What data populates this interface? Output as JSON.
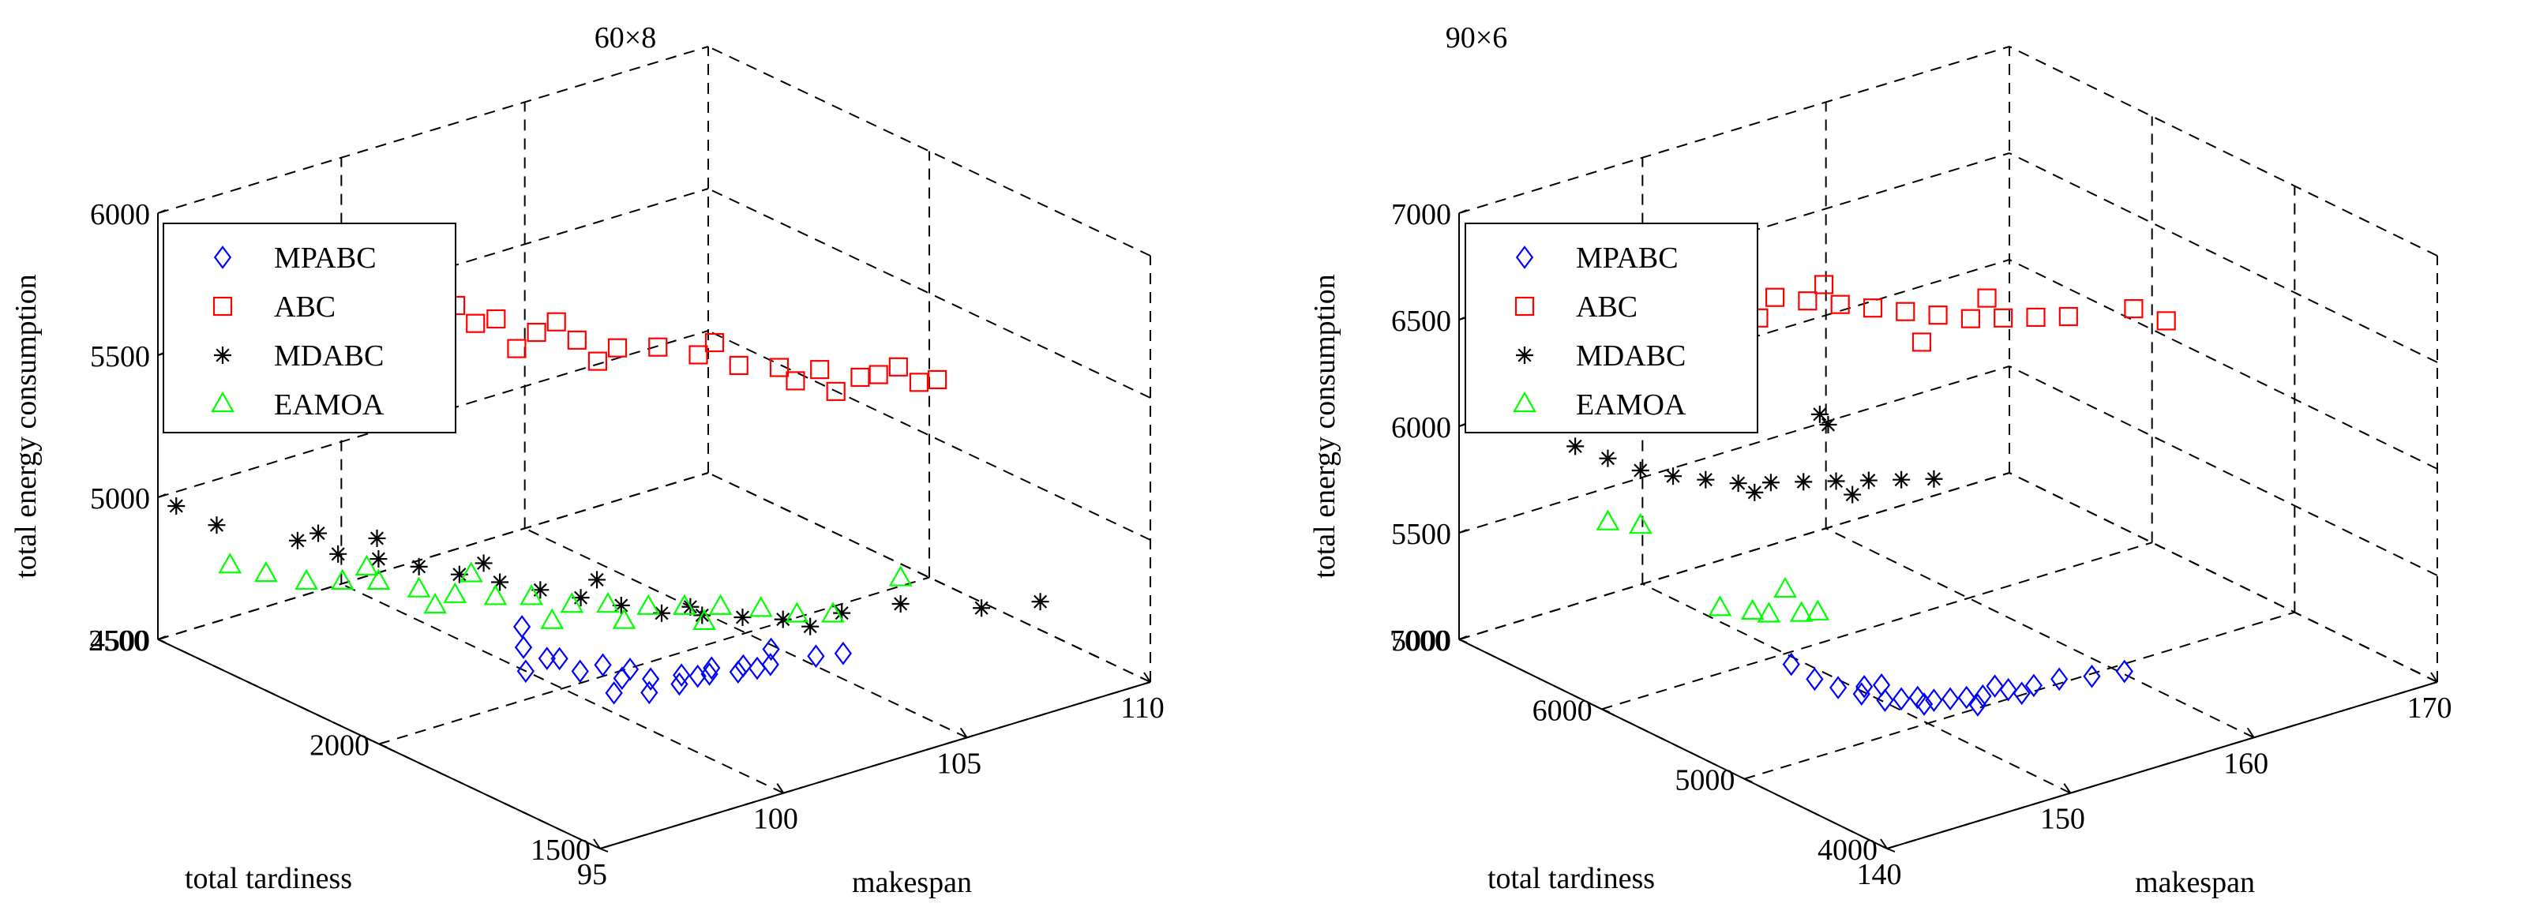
{
  "figure": {
    "caption": ""
  },
  "chart_data": [
    {
      "type": "scatter3d",
      "title": "60×8",
      "xlabel": "makespan",
      "ylabel": "total tardiness",
      "zlabel": "total energy consumption",
      "xlim": [
        95,
        110
      ],
      "ylim": [
        1500,
        2500
      ],
      "zlim": [
        4500,
        6000
      ],
      "xticks": [
        95,
        100,
        105,
        110
      ],
      "yticks": [
        1500,
        2000,
        2500
      ],
      "zticks": [
        4500,
        5000,
        5500,
        6000
      ],
      "grid": true,
      "legend_position": "top-left",
      "legend": [
        "MPABC",
        "ABC",
        "MDABC",
        "EAMOA"
      ],
      "series": [
        {
          "name": "MPABC",
          "marker": "diamond",
          "color": "#0000ff",
          "points": [
            [
              99.5,
              2050,
              4700
            ],
            [
              99.0,
              2000,
              4600
            ],
            [
              100.2,
              1900,
              4550
            ],
            [
              100.8,
              1870,
              4550
            ],
            [
              101.5,
              1860,
              4560
            ],
            [
              102.2,
              1850,
              4575
            ],
            [
              103.0,
              1840,
              4580
            ],
            [
              100.5,
              1950,
              4600
            ],
            [
              101.0,
              1930,
              4580
            ],
            [
              99.8,
              1990,
              4620
            ],
            [
              102.5,
              1870,
              4570
            ],
            [
              103.5,
              1820,
              4580
            ],
            [
              101.8,
              1880,
              4565
            ],
            [
              100.0,
              1960,
              4590
            ],
            [
              99.3,
              2030,
              4650
            ],
            [
              104.0,
              1860,
              4585
            ],
            [
              105.0,
              1780,
              4590
            ],
            [
              102.8,
              1835,
              4570
            ],
            [
              101.2,
              1900,
              4560
            ],
            [
              100.6,
              1915,
              4575
            ],
            [
              99.7,
              2010,
              4610
            ],
            [
              102.0,
              1860,
              4568
            ],
            [
              103.2,
              1825,
              4575
            ],
            [
              104.5,
              1800,
              4585
            ]
          ]
        },
        {
          "name": "ABC",
          "marker": "square",
          "color": "#ff0000",
          "points": [
            [
              96.0,
              2400,
              5650
            ],
            [
              96.5,
              2350,
              5650
            ],
            [
              98.5,
              2300,
              5680
            ],
            [
              99.0,
              2250,
              5700
            ],
            [
              99.5,
              2200,
              5720
            ],
            [
              100.0,
              2150,
              5690
            ],
            [
              100.5,
              2100,
              5660
            ],
            [
              101.0,
              2050,
              5650
            ],
            [
              101.5,
              2000,
              5640
            ],
            [
              102.0,
              1950,
              5660
            ],
            [
              102.5,
              1900,
              5650
            ],
            [
              103.0,
              1850,
              5630
            ],
            [
              103.5,
              1800,
              5640
            ],
            [
              104.0,
              1750,
              5650
            ],
            [
              104.5,
              1700,
              5640
            ],
            [
              105.0,
              1700,
              5630
            ],
            [
              105.5,
              1650,
              5620
            ],
            [
              106.0,
              1650,
              5610
            ],
            [
              100.2,
              2120,
              5600
            ],
            [
              101.2,
              2020,
              5590
            ],
            [
              102.7,
              1880,
              5700
            ],
            [
              104.2,
              1730,
              5580
            ],
            [
              99.8,
              2180,
              5660
            ],
            [
              103.7,
              1780,
              5600
            ],
            [
              105.3,
              1680,
              5660
            ],
            [
              100.8,
              2080,
              5700
            ]
          ]
        },
        {
          "name": "MDABC",
          "marker": "star",
          "color": "#000000",
          "points": [
            [
              95.5,
              2500,
              4950
            ],
            [
              96.0,
              2450,
              4900
            ],
            [
              97.0,
              2350,
              4880
            ],
            [
              97.5,
              2300,
              4850
            ],
            [
              98.0,
              2250,
              4850
            ],
            [
              98.5,
              2200,
              4840
            ],
            [
              99.0,
              2150,
              4830
            ],
            [
              99.5,
              2100,
              4820
            ],
            [
              100.0,
              2050,
              4810
            ],
            [
              100.5,
              2000,
              4800
            ],
            [
              101.0,
              1950,
              4790
            ],
            [
              101.5,
              1900,
              4780
            ],
            [
              102.0,
              1850,
              4790
            ],
            [
              102.5,
              1800,
              4800
            ],
            [
              103.0,
              1750,
              4810
            ],
            [
              104.0,
              1700,
              4830
            ],
            [
              105.0,
              1650,
              4860
            ],
            [
              106.0,
              1550,
              4880
            ],
            [
              107.0,
              1500,
              4900
            ],
            [
              98.2,
              2270,
              4900
            ],
            [
              99.3,
              2120,
              4880
            ],
            [
              100.7,
              1980,
              4870
            ],
            [
              101.8,
              1860,
              4820
            ],
            [
              97.2,
              2320,
              4920
            ],
            [
              103.5,
              1730,
              4780
            ]
          ]
        },
        {
          "name": "EAMOA",
          "marker": "triangle",
          "color": "#00ff00",
          "points": [
            [
              96.0,
              2420,
              4780
            ],
            [
              96.5,
              2380,
              4760
            ],
            [
              97.0,
              2330,
              4750
            ],
            [
              97.5,
              2290,
              4760
            ],
            [
              98.0,
              2250,
              4770
            ],
            [
              98.5,
              2200,
              4760
            ],
            [
              99.0,
              2160,
              4750
            ],
            [
              99.5,
              2110,
              4760
            ],
            [
              100.0,
              2070,
              4770
            ],
            [
              100.5,
              2020,
              4760
            ],
            [
              101.0,
              1980,
              4770
            ],
            [
              101.5,
              1930,
              4780
            ],
            [
              102.0,
              1890,
              4790
            ],
            [
              102.5,
              1850,
              4800
            ],
            [
              103.0,
              1800,
              4810
            ],
            [
              103.5,
              1760,
              4800
            ],
            [
              104.0,
              1720,
              4810
            ],
            [
              105.0,
              1650,
              4950
            ],
            [
              99.2,
              2140,
              4830
            ],
            [
              100.2,
              2040,
              4700
            ],
            [
              98.7,
              2180,
              4710
            ],
            [
              101.2,
              1960,
              4720
            ],
            [
              97.8,
              2260,
              4820
            ],
            [
              102.3,
              1870,
              4740
            ]
          ]
        }
      ]
    },
    {
      "type": "scatter3d",
      "title": "90×6",
      "xlabel": "makespan",
      "ylabel": "total tardiness",
      "zlabel": "total energy consumption",
      "xlim": [
        140,
        170
      ],
      "ylim": [
        4000,
        7000
      ],
      "zlim": [
        5000,
        7000
      ],
      "xticks": [
        140,
        150,
        160,
        170
      ],
      "yticks": [
        4000,
        5000,
        6000,
        7000
      ],
      "zticks": [
        5000,
        5500,
        6000,
        6500,
        7000
      ],
      "grid": true,
      "legend_position": "top-left",
      "legend": [
        "MPABC",
        "ABC",
        "MDABC",
        "EAMOA"
      ],
      "series": [
        {
          "name": "MPABC",
          "marker": "diamond",
          "color": "#0000ff",
          "points": [
            [
              148.0,
              5700,
              5100
            ],
            [
              148.5,
              5600,
              5050
            ],
            [
              149.0,
              5500,
              5030
            ],
            [
              149.5,
              5400,
              5020
            ],
            [
              150.0,
              5300,
              5010
            ],
            [
              150.5,
              5250,
              5020
            ],
            [
              151.0,
              5200,
              5030
            ],
            [
              151.5,
              5150,
              5020
            ],
            [
              152.0,
              5100,
              5030
            ],
            [
              152.5,
              5050,
              5040
            ],
            [
              153.0,
              5000,
              5050
            ],
            [
              154.0,
              4950,
              5070
            ],
            [
              155.0,
              4900,
              5080
            ],
            [
              156.0,
              4850,
              5100
            ],
            [
              157.0,
              4750,
              5120
            ],
            [
              158.0,
              4650,
              5150
            ],
            [
              150.2,
              5350,
              5060
            ],
            [
              151.2,
              5180,
              5000
            ],
            [
              149.8,
              5420,
              5040
            ],
            [
              152.8,
              5010,
              5010
            ],
            [
              153.5,
              4980,
              5090
            ],
            [
              154.5,
              4920,
              5050
            ]
          ]
        },
        {
          "name": "ABC",
          "marker": "square",
          "color": "#ff0000",
          "points": [
            [
              145.0,
              6800,
              6650
            ],
            [
              146.0,
              6700,
              6600
            ],
            [
              147.0,
              6600,
              6580
            ],
            [
              148.0,
              6500,
              6560
            ],
            [
              149.0,
              6400,
              6550
            ],
            [
              150.0,
              6300,
              6560
            ],
            [
              151.0,
              6200,
              6580
            ],
            [
              152.0,
              6100,
              6570
            ],
            [
              153.0,
              6000,
              6560
            ],
            [
              154.0,
              5900,
              6550
            ],
            [
              155.0,
              5800,
              6540
            ],
            [
              156.0,
              5700,
              6530
            ],
            [
              157.0,
              5600,
              6520
            ],
            [
              158.0,
              5500,
              6530
            ],
            [
              159.0,
              5400,
              6540
            ],
            [
              160.0,
              5300,
              6550
            ],
            [
              162.0,
              5100,
              6600
            ],
            [
              163.0,
              5000,
              6550
            ],
            [
              155.5,
              5750,
              6400
            ],
            [
              152.5,
              6050,
              6650
            ],
            [
              150.5,
              6250,
              6480
            ],
            [
              157.5,
              5550,
              6620
            ],
            [
              148.5,
              6450,
              6500
            ]
          ]
        },
        {
          "name": "MDABC",
          "marker": "star",
          "color": "#000000",
          "points": [
            [
              144.0,
              6700,
              5900
            ],
            [
              145.0,
              6600,
              5850
            ],
            [
              146.0,
              6500,
              5800
            ],
            [
              147.0,
              6400,
              5780
            ],
            [
              148.0,
              6300,
              5770
            ],
            [
              149.0,
              6200,
              5760
            ],
            [
              150.0,
              6100,
              5770
            ],
            [
              151.0,
              6000,
              5780
            ],
            [
              152.0,
              5900,
              5790
            ],
            [
              153.0,
              5800,
              5800
            ],
            [
              154.0,
              5700,
              5810
            ],
            [
              155.0,
              5600,
              5820
            ],
            [
              151.5,
              5950,
              6100
            ],
            [
              151.8,
              5930,
              6050
            ],
            [
              149.5,
              6150,
              5720
            ],
            [
              152.5,
              5850,
              5730
            ]
          ]
        },
        {
          "name": "EAMOA",
          "marker": "triangle",
          "color": "#00ff00",
          "points": [
            [
              145.0,
              6600,
              5550
            ],
            [
              146.0,
              6500,
              5540
            ],
            [
              150.0,
              6000,
              5300
            ],
            [
              148.0,
              6200,
              5200
            ],
            [
              149.0,
              6100,
              5190
            ],
            [
              149.5,
              6050,
              5180
            ],
            [
              150.5,
              5950,
              5190
            ],
            [
              151.0,
              5900,
              5200
            ]
          ]
        }
      ]
    }
  ]
}
